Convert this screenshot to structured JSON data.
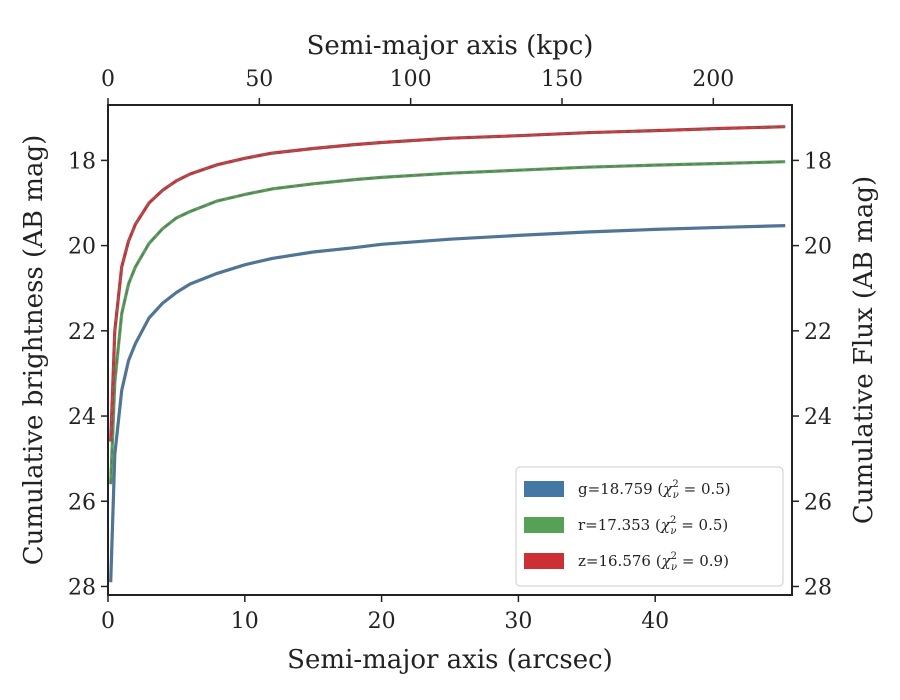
{
  "chart_data": {
    "type": "line",
    "x": [
      0.2,
      0.5,
      1,
      1.5,
      2,
      3,
      4,
      5,
      6,
      8,
      10,
      12,
      15,
      18,
      20,
      25,
      30,
      35,
      40,
      45,
      49.5
    ],
    "series": [
      {
        "name": "g=18.759",
        "chi2": "0.5",
        "color": "#4477a3",
        "values": [
          27.9,
          24.9,
          23.4,
          22.7,
          22.3,
          21.7,
          21.35,
          21.1,
          20.9,
          20.65,
          20.45,
          20.3,
          20.15,
          20.05,
          19.97,
          19.85,
          19.76,
          19.68,
          19.62,
          19.57,
          19.53
        ]
      },
      {
        "name": "r=17.353",
        "chi2": "0.5",
        "color": "#55a156",
        "values": [
          25.6,
          23.2,
          21.6,
          20.9,
          20.5,
          19.95,
          19.6,
          19.35,
          19.2,
          18.95,
          18.8,
          18.67,
          18.55,
          18.45,
          18.4,
          18.3,
          18.23,
          18.16,
          18.11,
          18.07,
          18.03
        ]
      },
      {
        "name": "z=16.576",
        "chi2": "0.9",
        "color": "#cd3034",
        "values": [
          24.6,
          22.0,
          20.5,
          19.9,
          19.5,
          19.0,
          18.7,
          18.48,
          18.32,
          18.1,
          17.95,
          17.83,
          17.72,
          17.63,
          17.58,
          17.48,
          17.42,
          17.35,
          17.3,
          17.25,
          17.21
        ]
      }
    ],
    "xlabel": "Semi-major axis (arcsec)",
    "ylabel": "Cumulative brightness (AB mag)",
    "top_xlabel": "Semi-major axis (kpc)",
    "right_ylabel": "Cumulative Flux (AB mag)",
    "xlim": [
      0,
      50
    ],
    "ylim": [
      28.2,
      16.7
    ],
    "top_xlim": [
      0,
      226
    ],
    "xticks": [
      0,
      10,
      20,
      30,
      40
    ],
    "yticks": [
      18,
      20,
      22,
      24,
      26,
      28
    ],
    "top_xticks": [
      0,
      50,
      100,
      150,
      200
    ],
    "y_inverted": true,
    "grid": false,
    "legend_position": "lower-right",
    "model_line_style": "dashed"
  }
}
